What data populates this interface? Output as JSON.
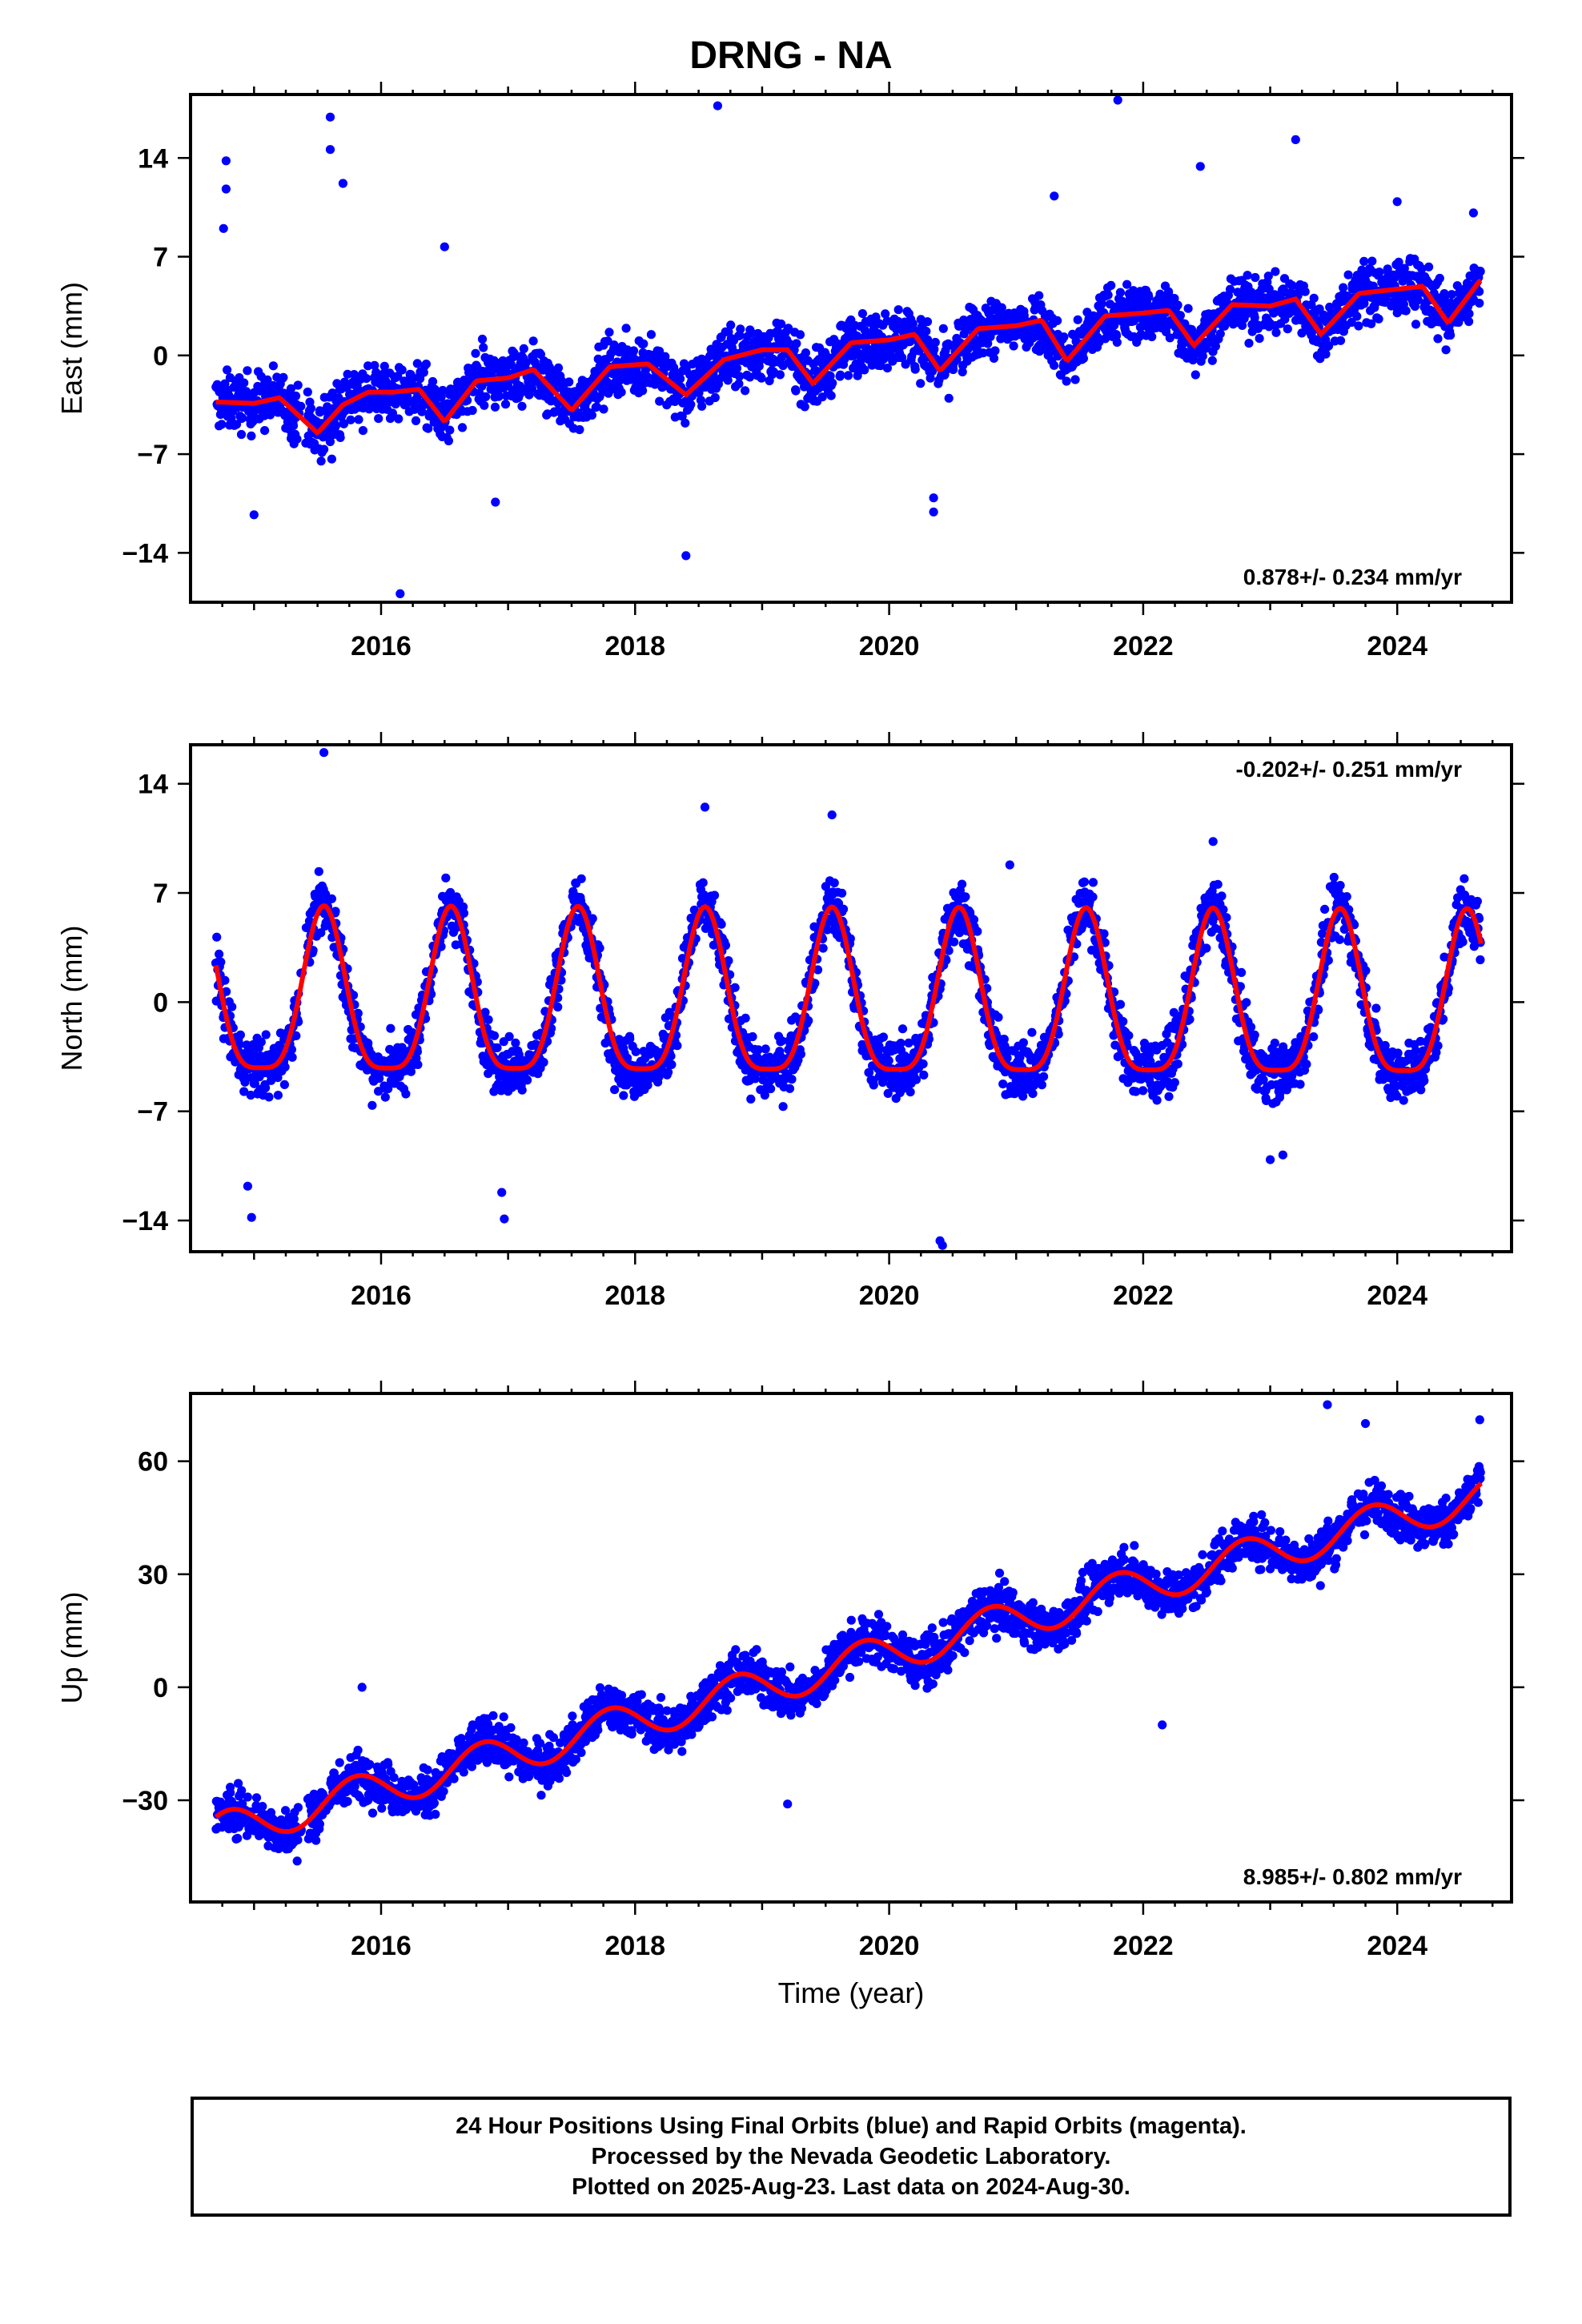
{
  "title": "DRNG - NA",
  "colors": {
    "points": "#0000ff",
    "fit": "#ff0000",
    "frame": "#000000"
  },
  "chart_data": [
    {
      "type": "scatter",
      "panel": "east",
      "ylabel": "East (mm)",
      "xlabel": "",
      "xlim": [
        2014.5,
        2024.9
      ],
      "ylim": [
        -17.5,
        18.5
      ],
      "yticks": [
        -14,
        -7,
        0,
        7,
        14
      ],
      "xticks": [
        2016,
        2018,
        2020,
        2022,
        2024
      ],
      "rate": "0.878+/- 0.234 mm/yr",
      "rate_position": "bottom-right",
      "fit_line": [
        [
          2014.7,
          -3.3
        ],
        [
          2015.0,
          -3.4
        ],
        [
          2015.2,
          -3.0
        ],
        [
          2015.5,
          -5.5
        ],
        [
          2015.7,
          -3.5
        ],
        [
          2015.9,
          -2.6
        ],
        [
          2016.1,
          -2.6
        ],
        [
          2016.3,
          -2.4
        ],
        [
          2016.5,
          -4.7
        ],
        [
          2016.75,
          -1.8
        ],
        [
          2017.0,
          -1.6
        ],
        [
          2017.2,
          -1.0
        ],
        [
          2017.5,
          -3.9
        ],
        [
          2017.8,
          -0.8
        ],
        [
          2018.1,
          -0.6
        ],
        [
          2018.4,
          -2.8
        ],
        [
          2018.7,
          -0.3
        ],
        [
          2019.0,
          0.4
        ],
        [
          2019.2,
          0.4
        ],
        [
          2019.4,
          -2.0
        ],
        [
          2019.7,
          0.9
        ],
        [
          2020.0,
          1.1
        ],
        [
          2020.2,
          1.5
        ],
        [
          2020.4,
          -1.1
        ],
        [
          2020.7,
          1.9
        ],
        [
          2021.0,
          2.1
        ],
        [
          2021.2,
          2.5
        ],
        [
          2021.4,
          -0.4
        ],
        [
          2021.7,
          2.8
        ],
        [
          2022.0,
          3.0
        ],
        [
          2022.2,
          3.2
        ],
        [
          2022.4,
          0.7
        ],
        [
          2022.7,
          3.6
        ],
        [
          2023.0,
          3.5
        ],
        [
          2023.2,
          4.0
        ],
        [
          2023.4,
          1.5
        ],
        [
          2023.7,
          4.4
        ],
        [
          2024.0,
          4.7
        ],
        [
          2024.2,
          4.9
        ],
        [
          2024.4,
          2.3
        ],
        [
          2024.65,
          5.3
        ]
      ],
      "points_by_year": [
        {
          "x": 2015.0,
          "y": -4.5,
          "spread": 3.5
        },
        {
          "x": 2015.6,
          "y": -3.0,
          "spread": 4.5
        },
        {
          "x": 2016.5,
          "y": -3.0,
          "spread": 3.0
        },
        {
          "x": 2017.5,
          "y": -1.5,
          "spread": 3.0
        },
        {
          "x": 2018.5,
          "y": -0.8,
          "spread": 3.0
        },
        {
          "x": 2019.5,
          "y": 0.0,
          "spread": 3.0
        },
        {
          "x": 2020.5,
          "y": 1.0,
          "spread": 3.0
        },
        {
          "x": 2021.5,
          "y": 2.0,
          "spread": 3.5
        },
        {
          "x": 2022.5,
          "y": 3.0,
          "spread": 3.5
        },
        {
          "x": 2023.5,
          "y": 3.5,
          "spread": 3.5
        },
        {
          "x": 2024.4,
          "y": 4.0,
          "spread": 3.5
        }
      ],
      "outliers": [
        [
          2014.78,
          13.8
        ],
        [
          2014.78,
          11.8
        ],
        [
          2014.76,
          9.0
        ],
        [
          2015.6,
          16.9
        ],
        [
          2015.6,
          14.6
        ],
        [
          2015.7,
          12.2
        ],
        [
          2016.9,
          -10.4
        ],
        [
          2016.15,
          -16.9
        ],
        [
          2016.5,
          7.7
        ],
        [
          2018.4,
          -14.2
        ],
        [
          2018.65,
          17.7
        ],
        [
          2020.35,
          -10.1
        ],
        [
          2020.35,
          -11.1
        ],
        [
          2021.8,
          18.1
        ],
        [
          2022.45,
          13.4
        ],
        [
          2023.2,
          15.3
        ],
        [
          2021.3,
          11.3
        ],
        [
          2024.0,
          10.9
        ],
        [
          2024.6,
          10.1
        ],
        [
          2015.0,
          -11.3
        ]
      ]
    },
    {
      "type": "scatter",
      "panel": "north",
      "ylabel": "North (mm)",
      "xlabel": "",
      "xlim": [
        2014.5,
        2024.9
      ],
      "ylim": [
        -16,
        16.5
      ],
      "yticks": [
        -14,
        -7,
        0,
        7,
        14
      ],
      "xticks": [
        2016,
        2018,
        2020,
        2022,
        2024
      ],
      "rate": "-0.202+/- 0.251 mm/yr",
      "rate_position": "top-right",
      "annual_amplitude": 5.2,
      "annual_phase_peak": 0.55,
      "fit_line_offset_start": -0.3,
      "fit_line_offset_end": -0.5,
      "outliers": [
        [
          2015.55,
          16.0
        ],
        [
          2014.95,
          -11.8
        ],
        [
          2014.98,
          -13.8
        ],
        [
          2016.95,
          -12.2
        ],
        [
          2016.97,
          -13.9
        ],
        [
          2018.55,
          12.5
        ],
        [
          2019.55,
          12.0
        ],
        [
          2020.4,
          -15.3
        ],
        [
          2020.42,
          -15.6
        ],
        [
          2020.95,
          8.8
        ],
        [
          2022.55,
          10.3
        ],
        [
          2023.0,
          -10.1
        ],
        [
          2023.1,
          -9.8
        ]
      ]
    },
    {
      "type": "scatter",
      "panel": "up",
      "ylabel": "Up (mm)",
      "xlabel": "Time (year)",
      "xlim": [
        2014.5,
        2024.9
      ],
      "ylim": [
        -57,
        78
      ],
      "yticks": [
        -30,
        0,
        30,
        60
      ],
      "xticks": [
        2016,
        2018,
        2020,
        2022,
        2024
      ],
      "rate": "8.985+/- 0.802 mm/yr",
      "rate_position": "bottom-right",
      "trend_start": -38.5,
      "trend_rate": 8.985,
      "annual_amplitude": 5.0,
      "annual_phase_peak": 0.8,
      "outliers": [
        [
          2019.2,
          -31.0
        ],
        [
          2023.45,
          75.0
        ],
        [
          2023.75,
          70.0
        ],
        [
          2024.65,
          71.0
        ],
        [
          2022.15,
          -10.0
        ],
        [
          2015.85,
          0.0
        ]
      ]
    }
  ],
  "footer": {
    "line1": "24 Hour Positions Using Final Orbits (blue) and Rapid Orbits (magenta).",
    "line2": "Processed by the Nevada Geodetic Laboratory.",
    "line3": "Plotted on 2025-Aug-23. Last data on 2024-Aug-30."
  }
}
